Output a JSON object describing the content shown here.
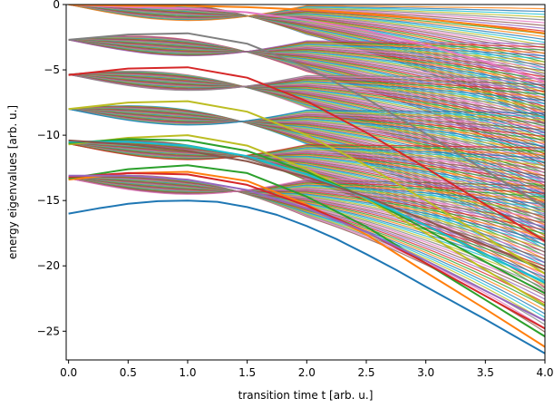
{
  "chart_data": {
    "type": "line",
    "title": "",
    "xlabel": "transition time t [arb. u.]",
    "ylabel": "energy eigenvalues [arb. u.]",
    "xlim": [
      -0.02,
      4.0
    ],
    "ylim": [
      -27.2,
      0.0
    ],
    "xticks": [
      0.0,
      0.5,
      1.0,
      1.5,
      2.0,
      2.5,
      3.0,
      3.5,
      4.0
    ],
    "xtick_labels": [
      "0.0",
      "0.5",
      "1.0",
      "1.5",
      "2.0",
      "2.5",
      "3.0",
      "3.5",
      "4.0"
    ],
    "yticks": [
      0,
      -5,
      -10,
      -15,
      -20,
      -25
    ],
    "ytick_labels": [
      "0",
      "−5",
      "−10",
      "−15",
      "−20",
      "−25"
    ],
    "grid": false,
    "legend": "none",
    "level_count_per_band": 42,
    "band_start_energies": [
      0.0,
      -2.7,
      -5.35,
      -8.0,
      -10.65,
      -13.3
    ],
    "series": [
      {
        "color": "#1f77b4",
        "x": [
          0.0,
          0.25,
          0.5,
          0.75,
          1.0,
          1.25,
          1.5,
          1.75,
          2.0,
          2.25,
          2.5,
          2.75,
          3.0,
          3.25,
          3.5,
          3.75,
          4.0
        ],
        "y": [
          -16.0,
          -15.6,
          -15.25,
          -15.05,
          -15.0,
          -15.1,
          -15.5,
          -16.1,
          -16.95,
          -17.95,
          -19.1,
          -20.3,
          -21.6,
          -22.85,
          -24.1,
          -25.4,
          -26.7
        ]
      },
      {
        "color": "#ff7f0e",
        "x": [
          0.0,
          0.5,
          1.0,
          1.5,
          2.0,
          2.5,
          3.0,
          3.5,
          4.0
        ],
        "y": [
          -13.4,
          -12.9,
          -12.8,
          -13.5,
          -15.3,
          -17.6,
          -20.5,
          -23.3,
          -26.2
        ]
      },
      {
        "color": "#2ca02c",
        "x": [
          0.0,
          0.5,
          1.0,
          1.5,
          2.0,
          2.5,
          3.0,
          3.5,
          4.0
        ],
        "y": [
          -13.3,
          -12.6,
          -12.3,
          -12.9,
          -14.7,
          -17.0,
          -19.8,
          -22.6,
          -25.4
        ]
      },
      {
        "color": "#d62728",
        "x": [
          0.0,
          0.5,
          1.0,
          1.5,
          2.0,
          2.5,
          3.0,
          3.5,
          4.0
        ],
        "y": [
          -13.2,
          -12.9,
          -13.0,
          -13.8,
          -15.4,
          -17.4,
          -19.8,
          -22.3,
          -24.8
        ]
      },
      {
        "color": "#9467bd",
        "x": [
          0.0,
          0.5,
          1.0,
          1.5,
          2.0,
          2.5,
          3.0,
          3.5,
          4.0
        ],
        "y": [
          -13.1,
          -13.1,
          -13.4,
          -14.2,
          -15.6,
          -17.4,
          -19.6,
          -21.9,
          -24.2
        ]
      },
      {
        "color": "#bcbd22",
        "x": [
          0.0,
          0.5,
          1.0,
          1.5,
          2.0,
          2.5,
          3.0,
          3.5,
          4.0
        ],
        "y": [
          -10.7,
          -10.2,
          -10.0,
          -10.8,
          -12.6,
          -14.9,
          -17.5,
          -20.3,
          -23.0
        ]
      },
      {
        "color": "#2ca02c",
        "x": [
          0.0,
          0.5,
          1.0,
          1.5,
          2.0,
          2.5,
          3.0,
          3.5,
          4.0
        ],
        "y": [
          -10.6,
          -10.3,
          -10.4,
          -11.2,
          -12.8,
          -14.8,
          -17.2,
          -19.7,
          -22.1
        ]
      },
      {
        "color": "#17becf",
        "x": [
          0.0,
          0.5,
          1.0,
          1.5,
          2.0,
          2.5,
          3.0,
          3.5,
          4.0
        ],
        "y": [
          -10.5,
          -10.5,
          -10.8,
          -11.6,
          -13.0,
          -14.8,
          -16.9,
          -19.1,
          -21.3
        ]
      },
      {
        "color": "#8c564b",
        "x": [
          0.0,
          0.5,
          1.0,
          1.5,
          2.0,
          2.5,
          3.0,
          3.5,
          4.0
        ],
        "y": [
          -10.4,
          -10.7,
          -11.2,
          -12.0,
          -13.2,
          -14.7,
          -16.5,
          -18.4,
          -20.3
        ]
      },
      {
        "color": "#bcbd22",
        "x": [
          0.0,
          0.5,
          1.0,
          1.5,
          2.0,
          2.5,
          3.0,
          3.5,
          4.0
        ],
        "y": [
          -8.0,
          -7.5,
          -7.4,
          -8.2,
          -10.0,
          -12.3,
          -15.0,
          -17.8,
          -20.6
        ]
      },
      {
        "color": "#d62728",
        "x": [
          0.0,
          0.5,
          1.0,
          1.5,
          2.0,
          2.5,
          3.0,
          3.5,
          4.0
        ],
        "y": [
          -5.4,
          -4.9,
          -4.8,
          -5.6,
          -7.4,
          -9.8,
          -12.5,
          -15.3,
          -18.1
        ]
      },
      {
        "color": "#7f7f7f",
        "x": [
          0.0,
          0.5,
          1.0,
          1.5,
          2.0,
          2.5,
          3.0,
          3.5,
          4.0
        ],
        "y": [
          -2.7,
          -2.3,
          -2.2,
          -3.0,
          -4.8,
          -7.2,
          -9.9,
          -12.7,
          -15.5
        ]
      },
      {
        "color": "#e377c2",
        "x": [
          0.0,
          0.5,
          1.0,
          1.5,
          2.0,
          2.5,
          3.0,
          3.5,
          4.0
        ],
        "y": [
          0.0,
          -0.2,
          -0.3,
          -0.6,
          -1.2,
          -2.0,
          -3.1,
          -4.4,
          -5.9
        ]
      },
      {
        "color": "#ff7f0e",
        "x": [
          0.0,
          0.5,
          1.0,
          1.5,
          2.0,
          2.5,
          3.0,
          3.5,
          4.0
        ],
        "y": [
          0.0,
          -0.1,
          -0.1,
          -0.2,
          -0.4,
          -0.7,
          -1.1,
          -1.6,
          -2.2
        ]
      }
    ]
  }
}
